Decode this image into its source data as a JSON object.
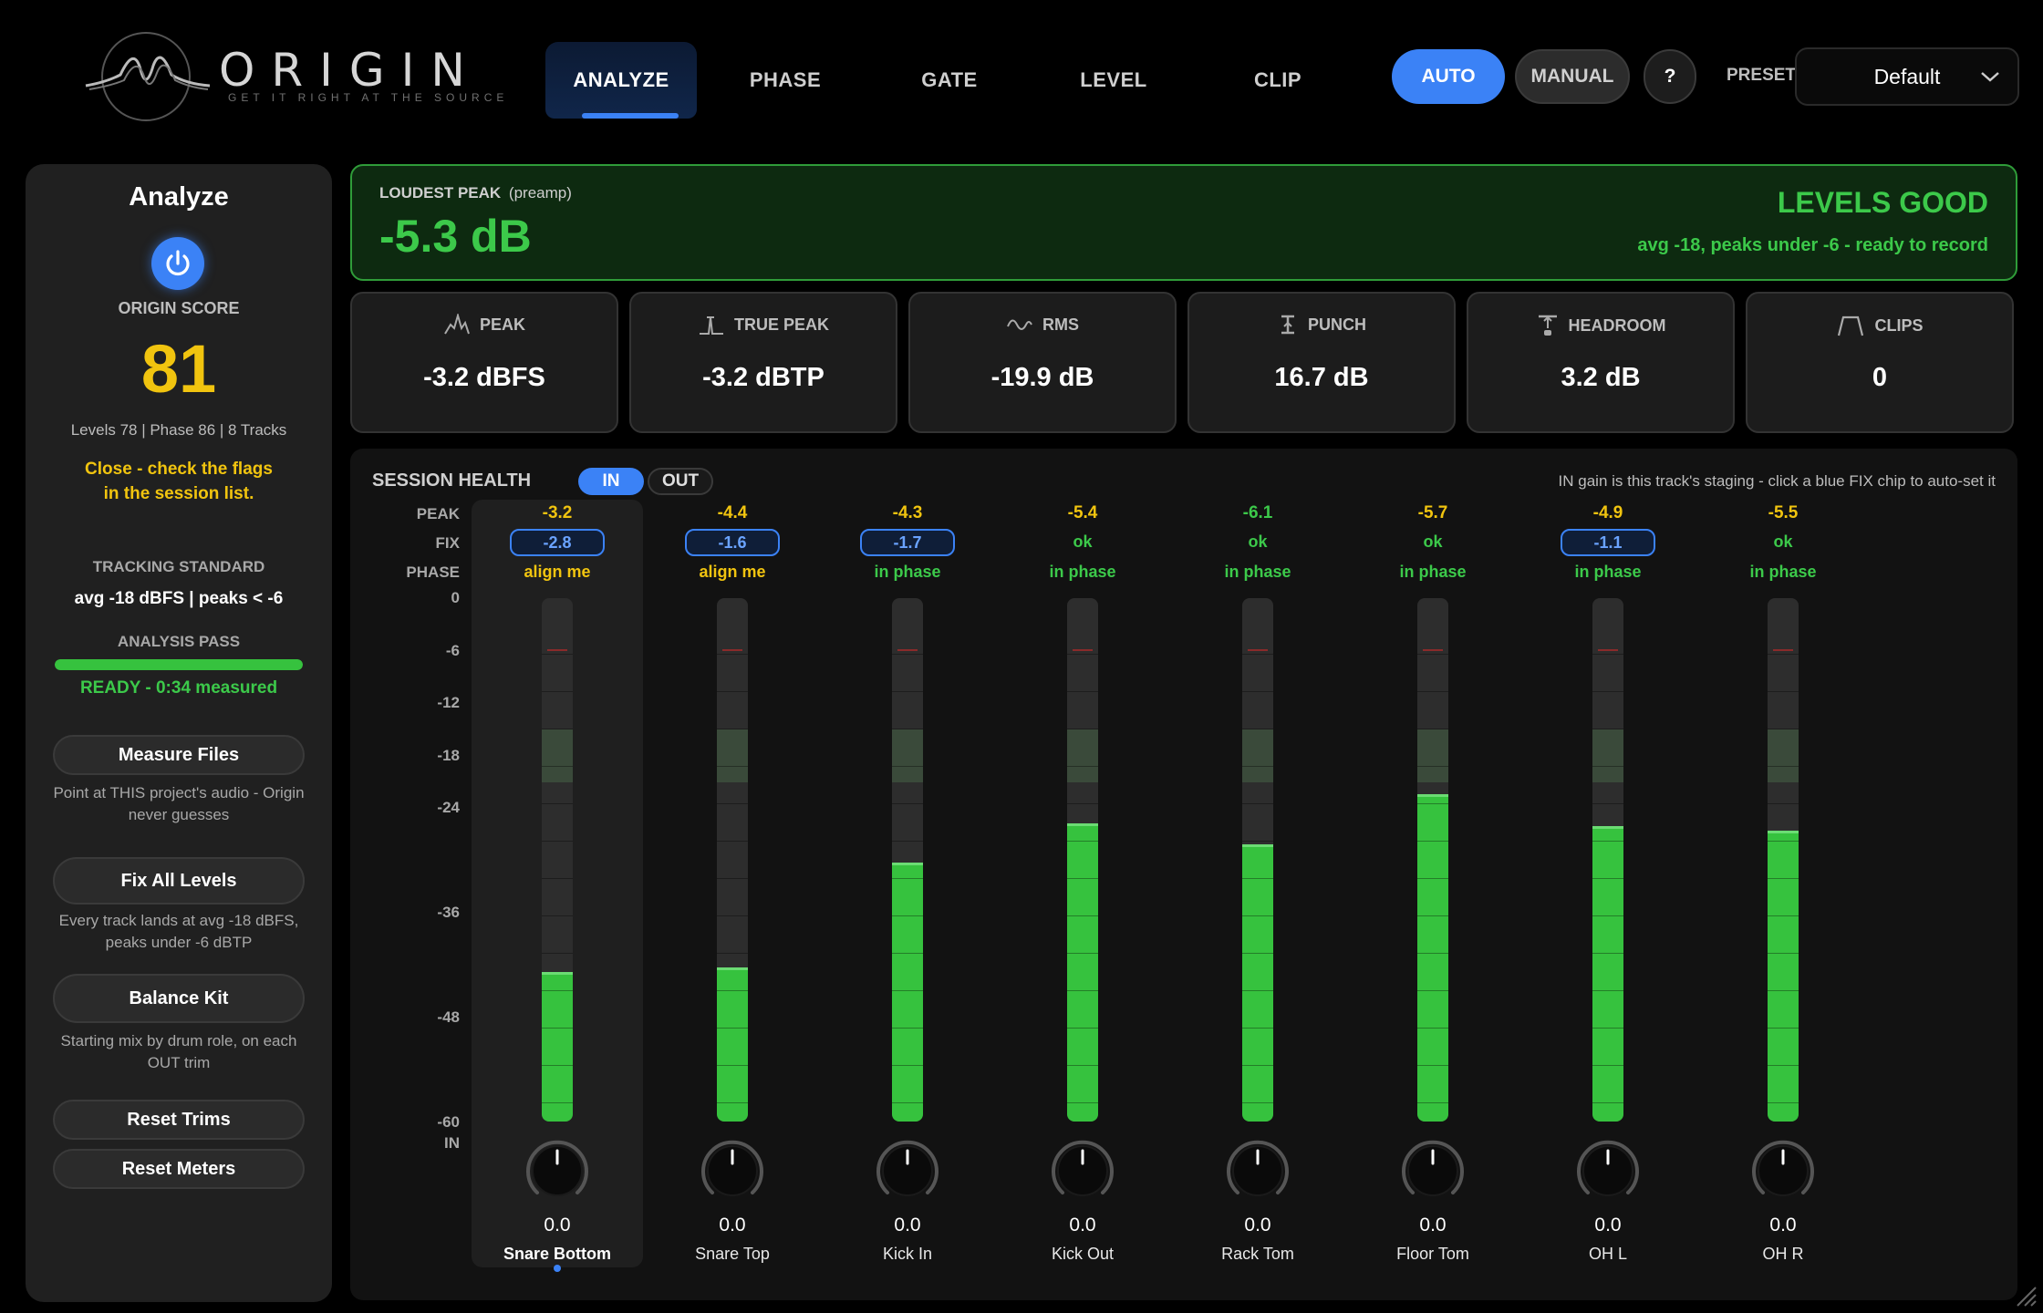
{
  "header": {
    "logo": {
      "word": "ORIGIN",
      "tagline": "GET IT RIGHT AT THE SOURCE"
    },
    "tabs": [
      {
        "label": "ANALYZE",
        "active": true
      },
      {
        "label": "PHASE",
        "active": false
      },
      {
        "label": "GATE",
        "active": false
      },
      {
        "label": "LEVEL",
        "active": false
      },
      {
        "label": "CLIP",
        "active": false
      }
    ],
    "mode_auto": "AUTO",
    "mode_manual": "MANUAL",
    "help": "?",
    "preset_label": "PRESET",
    "preset_value": "Default"
  },
  "sidebar": {
    "title": "Analyze",
    "score_label": "ORIGIN SCORE",
    "score": "81",
    "breakdown": "Levels 78 | Phase 86 | 8 Tracks",
    "advice_line1": "Close - check the flags",
    "advice_line2": "in the session list.",
    "standard_label": "TRACKING STANDARD",
    "standard_value": "avg -18 dBFS | peaks < -6",
    "pass_label": "ANALYSIS PASS",
    "pass_progress": 1.0,
    "pass_status": "READY - 0:34 measured",
    "measure_btn": "Measure Files",
    "measure_note_1": "Point at THIS project's audio - Origin",
    "measure_note_2": "never guesses",
    "fix_btn": "Fix All Levels",
    "fix_note_1": "Every track lands at avg -18 dBFS,",
    "fix_note_2": "peaks under -6 dBTP",
    "balance_btn": "Balance Kit",
    "balance_note_1": "Starting mix by drum role, on each",
    "balance_note_2": "OUT trim",
    "reset_trims_btn": "Reset Trims",
    "reset_meters_btn": "Reset Meters"
  },
  "banner": {
    "label": "LOUDEST PEAK",
    "label_sub": "(preamp)",
    "value": "-5.3 dB",
    "status": "LEVELS GOOD",
    "detail": "avg -18, peaks under -6 - ready to record"
  },
  "stats": [
    {
      "label": "PEAK",
      "value": "-3.2 dBFS",
      "icon": "peak-icon"
    },
    {
      "label": "TRUE PEAK",
      "value": "-3.2 dBTP",
      "icon": "true-peak-icon"
    },
    {
      "label": "RMS",
      "value": "-19.9 dB",
      "icon": "rms-wave-icon"
    },
    {
      "label": "PUNCH",
      "value": "16.7 dB",
      "icon": "punch-icon"
    },
    {
      "label": "HEADROOM",
      "value": "3.2 dB",
      "icon": "headroom-icon"
    },
    {
      "label": "CLIPS",
      "value": "0",
      "icon": "clips-icon"
    }
  ],
  "session": {
    "title": "SESSION HEALTH",
    "toggle_in": "IN",
    "toggle_out": "OUT",
    "hint": "IN gain is this track's staging - click a blue FIX chip to auto-set it",
    "row_peak": "PEAK",
    "row_fix": "FIX",
    "row_phase": "PHASE",
    "row_in": "IN",
    "scale": [
      "0",
      "-6",
      "-12",
      "-18",
      "-24",
      "-36",
      "-48",
      "-60"
    ],
    "channels": [
      {
        "name": "Snare Bottom",
        "peak": "-3.2",
        "peak_color": "yellow",
        "fix": "-2.8",
        "fix_chip": true,
        "phase": "align me",
        "phase_color": "yellow",
        "level": 0.285,
        "in": "0.0",
        "selected": true
      },
      {
        "name": "Snare Top",
        "peak": "-4.4",
        "peak_color": "yellow",
        "fix": "-1.6",
        "fix_chip": true,
        "phase": "align me",
        "phase_color": "yellow",
        "level": 0.295,
        "in": "0.0",
        "selected": false
      },
      {
        "name": "Kick In",
        "peak": "-4.3",
        "peak_color": "yellow",
        "fix": "-1.7",
        "fix_chip": true,
        "phase": "in phase",
        "phase_color": "green",
        "level": 0.495,
        "in": "0.0",
        "selected": false
      },
      {
        "name": "Kick Out",
        "peak": "-5.4",
        "peak_color": "yellow",
        "fix": "ok",
        "fix_chip": false,
        "phase": "in phase",
        "phase_color": "green",
        "level": 0.57,
        "in": "0.0",
        "selected": false
      },
      {
        "name": "Rack Tom",
        "peak": "-6.1",
        "peak_color": "green",
        "fix": "ok",
        "fix_chip": false,
        "phase": "in phase",
        "phase_color": "green",
        "level": 0.53,
        "in": "0.0",
        "selected": false
      },
      {
        "name": "Floor Tom",
        "peak": "-5.7",
        "peak_color": "yellow",
        "fix": "ok",
        "fix_chip": false,
        "phase": "in phase",
        "phase_color": "green",
        "level": 0.625,
        "in": "0.0",
        "selected": false
      },
      {
        "name": "OH L",
        "peak": "-4.9",
        "peak_color": "yellow",
        "fix": "-1.1",
        "fix_chip": true,
        "phase": "in phase",
        "phase_color": "green",
        "level": 0.565,
        "in": "0.0",
        "selected": false
      },
      {
        "name": "OH R",
        "peak": "-5.5",
        "peak_color": "yellow",
        "fix": "ok",
        "fix_chip": false,
        "phase": "in phase",
        "phase_color": "green",
        "level": 0.555,
        "in": "0.0",
        "selected": false
      }
    ]
  },
  "colors": {
    "accent": "#3b82f6",
    "good": "#3cc94a",
    "warn": "#f1c40f",
    "panel": "#202020"
  }
}
